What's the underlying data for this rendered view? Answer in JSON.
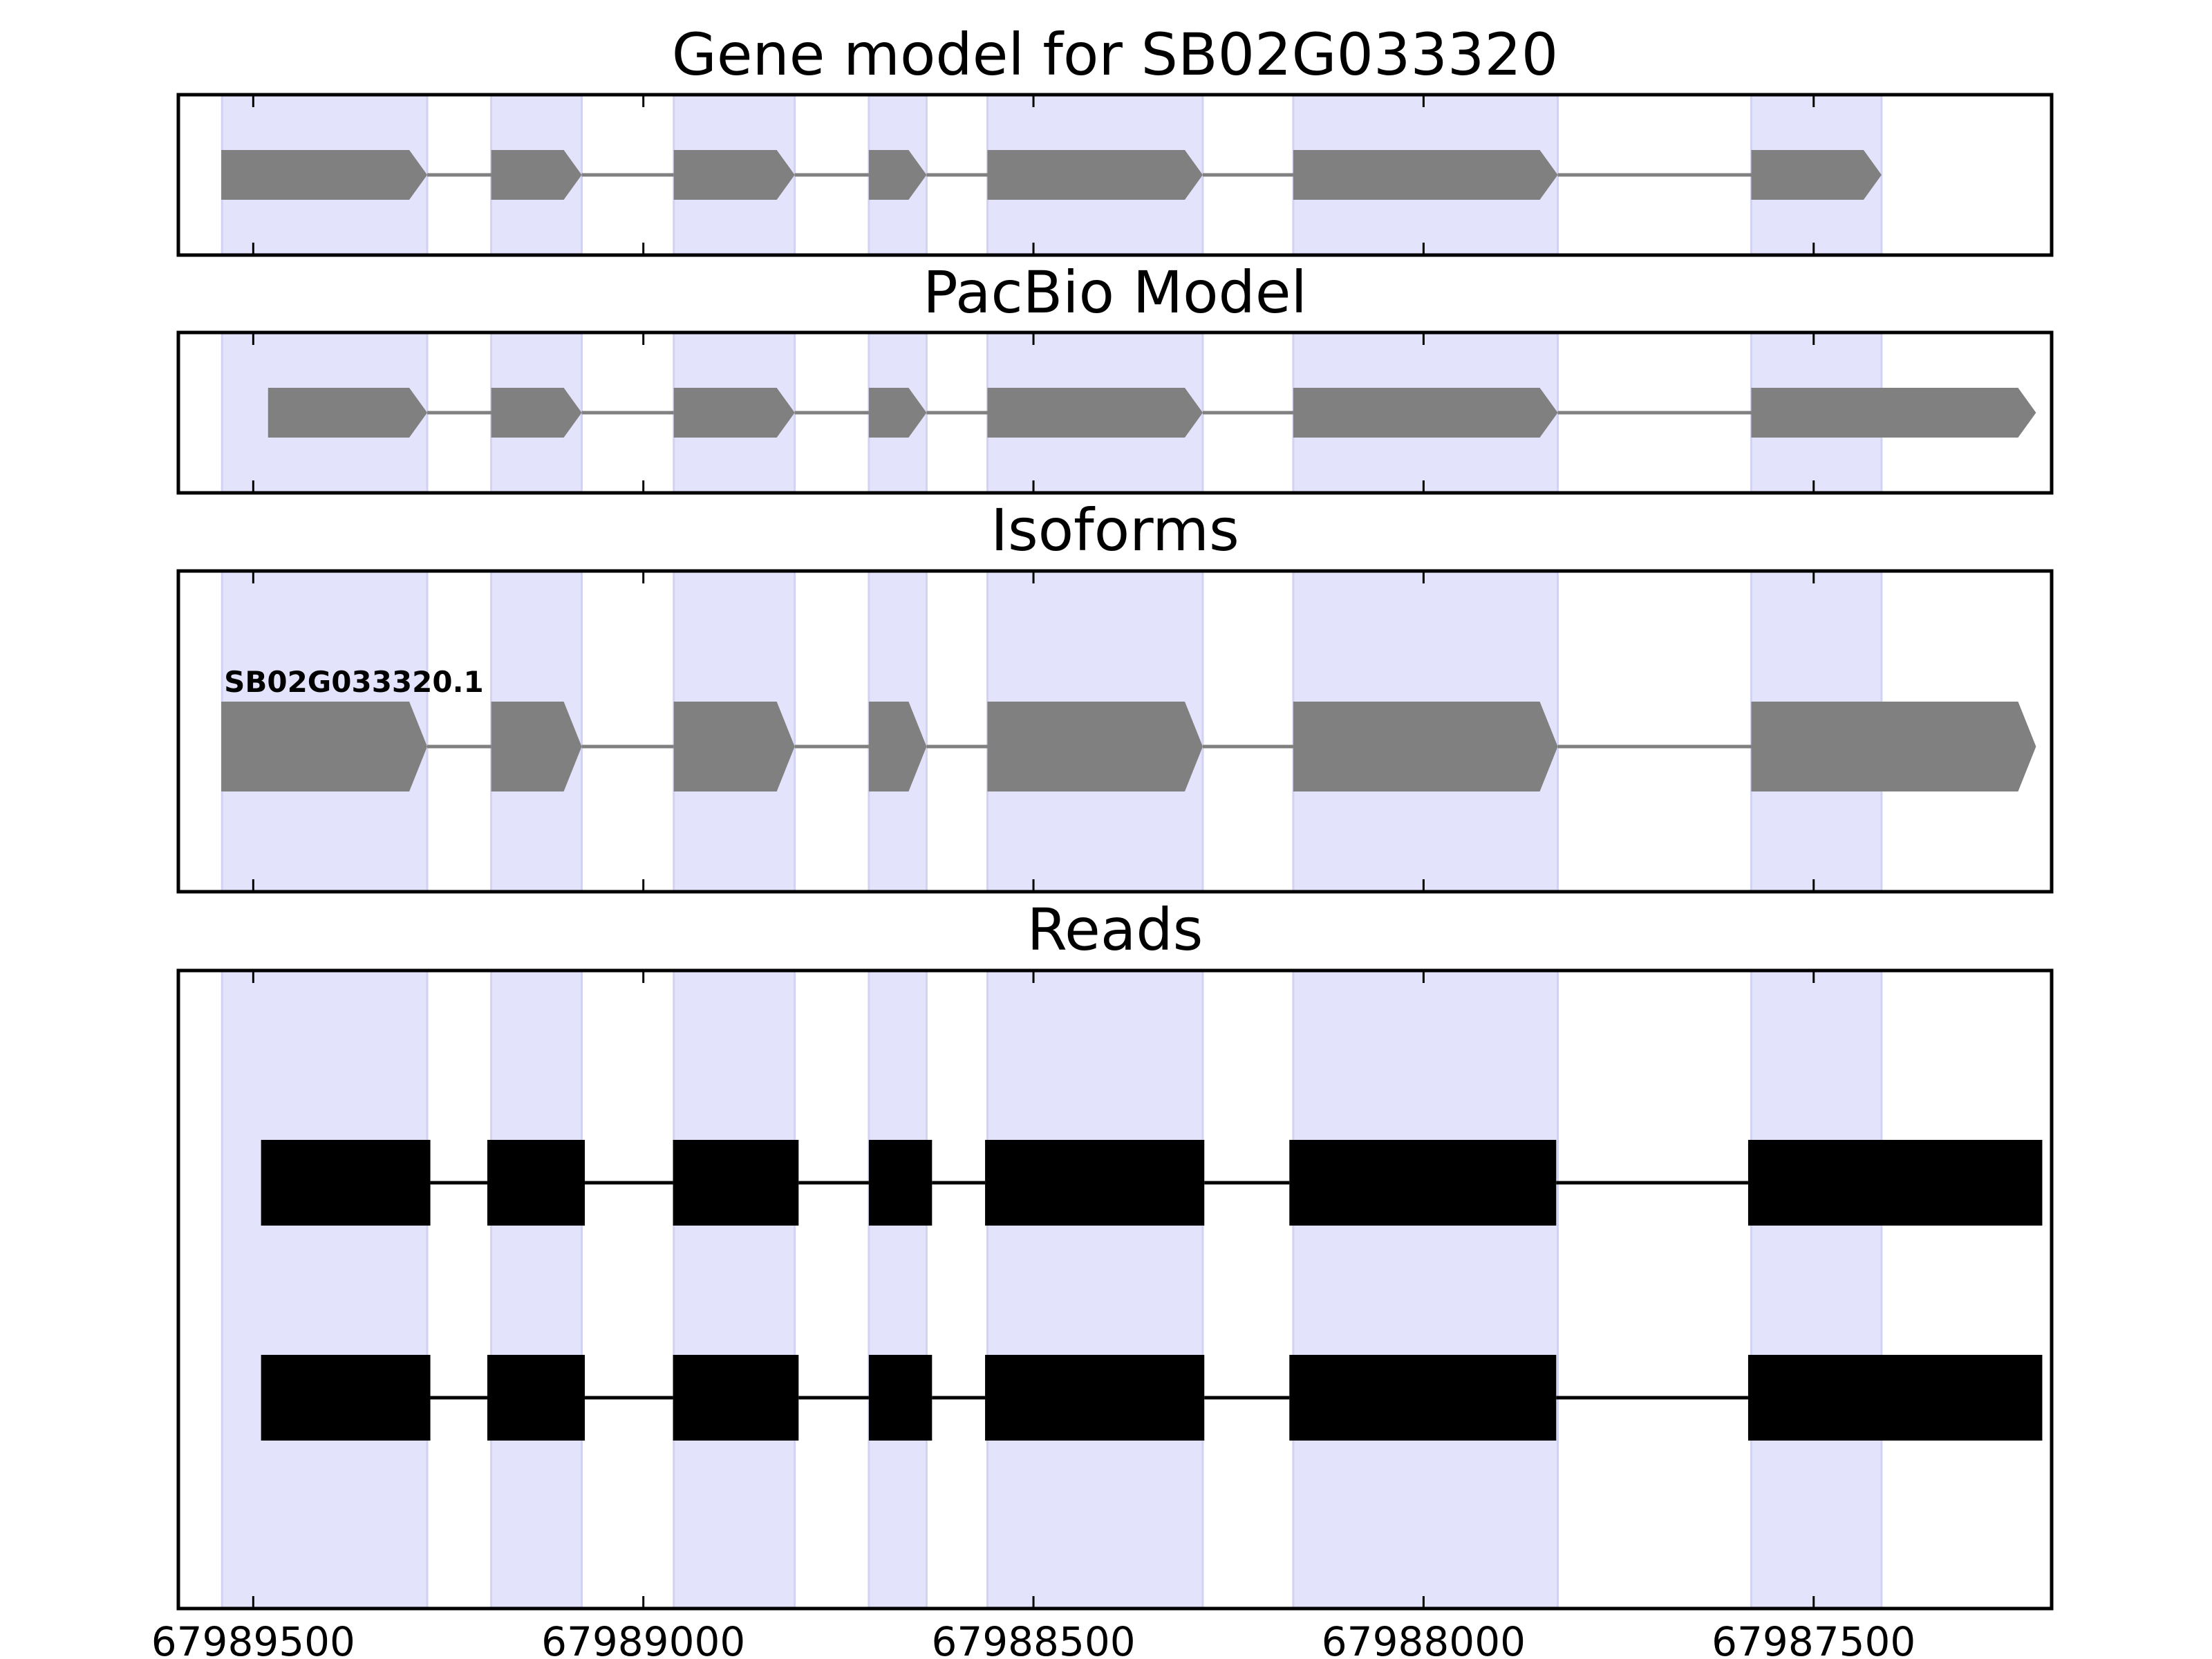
{
  "chart_data": {
    "type": "gene-structure",
    "x_axis": {
      "reversed": true,
      "range": [
        67989596,
        67987195
      ],
      "ticks": [
        67989500,
        67989000,
        67988500,
        67988000,
        67987500
      ],
      "tick_labels": [
        "67989500",
        "67989000",
        "67988500",
        "67988000",
        "67987500"
      ]
    },
    "colors": {
      "exon_fill": "#808080",
      "intron_line": "#808080",
      "read_fill": "#000000",
      "highlight": "#e3e3fb",
      "highlight_edge": "#d2d2f2",
      "frame": "#000000"
    },
    "highlight_regions": [
      [
        67989540,
        67989277
      ],
      [
        67989195,
        67989079
      ],
      [
        67988961,
        67988806
      ],
      [
        67988711,
        67988637
      ],
      [
        67988559,
        67988283
      ],
      [
        67988167,
        67987828
      ],
      [
        67987580,
        67987413
      ]
    ],
    "panels": [
      {
        "title": "Gene model for SB02G033320",
        "strand": "-",
        "exons": [
          [
            67989541,
            67989277
          ],
          [
            67989195,
            67989079
          ],
          [
            67988961,
            67988806
          ],
          [
            67988711,
            67988637
          ],
          [
            67988559,
            67988283
          ],
          [
            67988167,
            67987828
          ],
          [
            67987580,
            67987413
          ]
        ]
      },
      {
        "title": "PacBio Model",
        "strand": "-",
        "exons": [
          [
            67989481,
            67989277
          ],
          [
            67989195,
            67989079
          ],
          [
            67988961,
            67988806
          ],
          [
            67988711,
            67988637
          ],
          [
            67988559,
            67988283
          ],
          [
            67988167,
            67987828
          ],
          [
            67987580,
            67987215
          ]
        ]
      },
      {
        "title": "Isoforms",
        "strand": "-",
        "label": "SB02G033320.1",
        "exons": [
          [
            67989541,
            67989277
          ],
          [
            67989195,
            67989079
          ],
          [
            67988961,
            67988806
          ],
          [
            67988711,
            67988637
          ],
          [
            67988559,
            67988283
          ],
          [
            67988167,
            67987828
          ],
          [
            67987580,
            67987215
          ]
        ]
      },
      {
        "title": "Reads",
        "reads": [
          {
            "exons": [
              [
                67989490,
                67989273
              ],
              [
                67989200,
                67989075
              ],
              [
                67988962,
                67988801
              ],
              [
                67988711,
                67988630
              ],
              [
                67988562,
                67988281
              ],
              [
                67988172,
                67987830
              ],
              [
                67987584,
                67987207
              ]
            ]
          },
          {
            "exons": [
              [
                67989490,
                67989273
              ],
              [
                67989200,
                67989075
              ],
              [
                67988962,
                67988801
              ],
              [
                67988711,
                67988630
              ],
              [
                67988562,
                67988281
              ],
              [
                67988172,
                67987830
              ],
              [
                67987584,
                67987207
              ]
            ]
          }
        ]
      }
    ]
  }
}
